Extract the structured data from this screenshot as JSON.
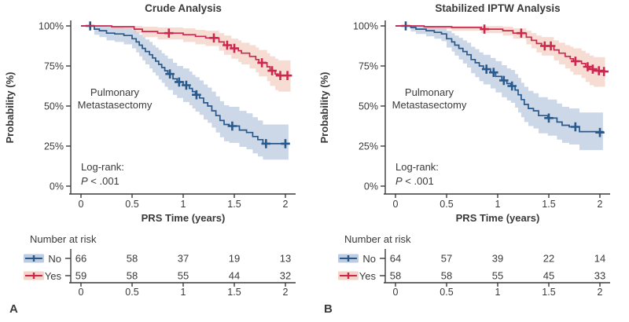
{
  "colors": {
    "axis": "#3a3a3a",
    "text": "#3a3a3a",
    "background": "#ffffff",
    "no_line": "#27598c",
    "no_band": "#a3b7d6",
    "yes_line": "#cd2750",
    "yes_band": "#efbfae"
  },
  "chart_data": [
    {
      "type": "line",
      "subtype": "kaplan-meier-step",
      "title": "Crude Analysis",
      "panel_letter": "A",
      "xlabel": "PRS Time (years)",
      "ylabel": "Probability (%)",
      "annotation_line1": "Pulmonary",
      "annotation_line2": "Metastasectomy",
      "logrank_label": "Log-rank:",
      "p_label": "P",
      "p_rest": " < .001",
      "xlim": [
        0,
        2.05
      ],
      "ylim": [
        0,
        100
      ],
      "xticks": [
        0,
        0.5,
        1,
        1.5,
        2
      ],
      "xtick_labels": [
        "0",
        "0.5",
        "1",
        "1.5",
        "2"
      ],
      "yticks": [
        0,
        25,
        50,
        75,
        100
      ],
      "ytick_labels": [
        "0%",
        "25%",
        "50%",
        "75%",
        "100%"
      ],
      "risk_table": {
        "header": "Number at risk",
        "time_labels": [
          "0",
          "0.5",
          "1",
          "1.5",
          "2"
        ],
        "rows": [
          {
            "label": "No",
            "counts": [
              "66",
              "58",
              "37",
              "19",
              "13"
            ]
          },
          {
            "label": "Yes",
            "counts": [
              "59",
              "58",
              "55",
              "44",
              "32"
            ]
          }
        ]
      },
      "series": [
        {
          "name": "No",
          "line_color": "#27598c",
          "band_color": "#a3b7d6",
          "points": [
            [
              0,
              100,
              100,
              100
            ],
            [
              0.13,
              98,
              94.5,
              100
            ],
            [
              0.18,
              97,
              93,
              100
            ],
            [
              0.25,
              95.5,
              91,
              99.5
            ],
            [
              0.33,
              95,
              90,
              99
            ],
            [
              0.42,
              94,
              88.5,
              98.5
            ],
            [
              0.5,
              92,
              86,
              97.5
            ],
            [
              0.54,
              90,
              83.5,
              96
            ],
            [
              0.57,
              88,
              81,
              94.5
            ],
            [
              0.6,
              86,
              78.5,
              93
            ],
            [
              0.63,
              84,
              76,
              91.5
            ],
            [
              0.67,
              82,
              73.5,
              90
            ],
            [
              0.7,
              80,
              71,
              88
            ],
            [
              0.73,
              78,
              69,
              86.5
            ],
            [
              0.76,
              76,
              66.5,
              85
            ],
            [
              0.79,
              74,
              64.5,
              83
            ],
            [
              0.82,
              72,
              62,
              81.5
            ],
            [
              0.85,
              70,
              60,
              79.5
            ],
            [
              0.9,
              67,
              57,
              77
            ],
            [
              0.94,
              65,
              55,
              75
            ],
            [
              1.0,
              63,
              52.5,
              73.5
            ],
            [
              1.06,
              61,
              50.5,
              71.5
            ],
            [
              1.09,
              59,
              48.5,
              69.5
            ],
            [
              1.12,
              57,
              46.5,
              68
            ],
            [
              1.16,
              55,
              44.5,
              66
            ],
            [
              1.2,
              52,
              41.5,
              63.5
            ],
            [
              1.24,
              50,
              39.5,
              61.5
            ],
            [
              1.28,
              47,
              36.5,
              59
            ],
            [
              1.32,
              44,
              33.5,
              56
            ],
            [
              1.36,
              41,
              30.5,
              53
            ],
            [
              1.4,
              38.5,
              28,
              50.5
            ],
            [
              1.45,
              37.5,
              27,
              49.5
            ],
            [
              1.55,
              35,
              24.5,
              47
            ],
            [
              1.62,
              33.5,
              23,
              45.5
            ],
            [
              1.68,
              31,
              20.5,
              43
            ],
            [
              1.73,
              29,
              18.5,
              41
            ],
            [
              1.78,
              26.5,
              16.5,
              38.5
            ],
            [
              2.03,
              26.5,
              16.5,
              38.5
            ]
          ],
          "censors": [
            [
              0.09,
              100
            ],
            [
              0.87,
              70
            ],
            [
              0.96,
              65
            ],
            [
              1.03,
              63
            ],
            [
              1.13,
              57
            ],
            [
              1.48,
              37.5
            ],
            [
              1.81,
              26.5
            ],
            [
              2.0,
              26.5
            ]
          ]
        },
        {
          "name": "Yes",
          "line_color": "#cd2750",
          "band_color": "#efbfae",
          "points": [
            [
              0,
              100,
              100,
              100
            ],
            [
              0.3,
              99.5,
              98,
              100
            ],
            [
              0.52,
              98,
              95.5,
              100
            ],
            [
              0.6,
              96.5,
              93,
              99.5
            ],
            [
              0.75,
              95.5,
              91.5,
              99
            ],
            [
              1.0,
              94.5,
              90,
              98.5
            ],
            [
              1.12,
              93.5,
              88.5,
              97.5
            ],
            [
              1.22,
              92.5,
              87.5,
              97
            ],
            [
              1.35,
              90,
              84.5,
              95.5
            ],
            [
              1.4,
              88,
              82,
              94
            ],
            [
              1.47,
              86,
              79.5,
              92
            ],
            [
              1.54,
              84.5,
              77.5,
              91
            ],
            [
              1.57,
              83,
              76,
              89.5
            ],
            [
              1.65,
              81,
              73.5,
              88
            ],
            [
              1.71,
              79,
              71,
              86.5
            ],
            [
              1.74,
              77,
              68.5,
              85
            ],
            [
              1.82,
              74.5,
              65.5,
              83
            ],
            [
              1.85,
              72,
              62.5,
              81
            ],
            [
              1.9,
              70,
              60,
              79.5
            ],
            [
              1.93,
              69,
              59,
              78.5
            ],
            [
              2.05,
              69,
              59,
              78.5
            ]
          ],
          "censors": [
            [
              0.86,
              95.5
            ],
            [
              1.3,
              92.5
            ],
            [
              1.43,
              88
            ],
            [
              1.5,
              86
            ],
            [
              1.77,
              77
            ],
            [
              1.87,
              72
            ],
            [
              1.95,
              69
            ],
            [
              2.02,
              69
            ]
          ]
        }
      ]
    },
    {
      "type": "line",
      "subtype": "kaplan-meier-step",
      "title": "Stabilized IPTW Analysis",
      "panel_letter": "B",
      "xlabel": "PRS Time (years)",
      "ylabel": "Probability (%)",
      "annotation_line1": "Pulmonary",
      "annotation_line2": "Metastasectomy",
      "logrank_label": "Log-rank:",
      "p_label": "P",
      "p_rest": " < .001",
      "xlim": [
        0,
        2.05
      ],
      "ylim": [
        0,
        100
      ],
      "xticks": [
        0,
        0.5,
        1,
        1.5,
        2
      ],
      "xtick_labels": [
        "0",
        "0.5",
        "1",
        "1.5",
        "2"
      ],
      "yticks": [
        0,
        25,
        50,
        75,
        100
      ],
      "ytick_labels": [
        "0%",
        "25%",
        "50%",
        "75%",
        "100%"
      ],
      "risk_table": {
        "header": "Number at risk",
        "time_labels": [
          "0",
          "0.5",
          "1",
          "1.5",
          "2"
        ],
        "rows": [
          {
            "label": "No",
            "counts": [
              "64",
              "57",
              "39",
              "22",
              "14"
            ]
          },
          {
            "label": "Yes",
            "counts": [
              "58",
              "58",
              "55",
              "45",
              "33"
            ]
          }
        ]
      },
      "series": [
        {
          "name": "No",
          "line_color": "#27598c",
          "band_color": "#a3b7d6",
          "points": [
            [
              0,
              100,
              100,
              100
            ],
            [
              0.15,
              99,
              96.5,
              100
            ],
            [
              0.2,
              98,
              95,
              100
            ],
            [
              0.3,
              97,
              93.5,
              100
            ],
            [
              0.38,
              96,
              92,
              99.5
            ],
            [
              0.45,
              95,
              90.5,
              99
            ],
            [
              0.5,
              92,
              86.5,
              97
            ],
            [
              0.55,
              90,
              84,
              95.5
            ],
            [
              0.58,
              88,
              81.5,
              94
            ],
            [
              0.62,
              86,
              79,
              92.5
            ],
            [
              0.66,
              84,
              76.5,
              91
            ],
            [
              0.7,
              82,
              74,
              89.5
            ],
            [
              0.74,
              79,
              70.5,
              87
            ],
            [
              0.78,
              77,
              68,
              85.5
            ],
            [
              0.82,
              75,
              65.5,
              83.5
            ],
            [
              0.86,
              73,
              63.5,
              82
            ],
            [
              0.93,
              71,
              61,
              80
            ],
            [
              0.98,
              68.5,
              58.5,
              78
            ],
            [
              1.04,
              66,
              55.5,
              75.5
            ],
            [
              1.09,
              64,
              53.5,
              73.5
            ],
            [
              1.13,
              62.5,
              52,
              72.5
            ],
            [
              1.17,
              60,
              49,
              70
            ],
            [
              1.2,
              57,
              46,
              67.5
            ],
            [
              1.23,
              54,
              43,
              64.5
            ],
            [
              1.26,
              51,
              40,
              62
            ],
            [
              1.3,
              48.5,
              37.5,
              59.5
            ],
            [
              1.35,
              47,
              36,
              58
            ],
            [
              1.4,
              44,
              33,
              55.5
            ],
            [
              1.49,
              42.5,
              31.5,
              54
            ],
            [
              1.58,
              40,
              29,
              51.5
            ],
            [
              1.63,
              38,
              27,
              49.5
            ],
            [
              1.7,
              37,
              26,
              48.5
            ],
            [
              1.8,
              34,
              22.5,
              46
            ],
            [
              2.03,
              33.5,
              22,
              45.5
            ]
          ],
          "censors": [
            [
              0.1,
              100
            ],
            [
              0.89,
              73
            ],
            [
              0.96,
              71
            ],
            [
              1.06,
              66
            ],
            [
              1.14,
              62.5
            ],
            [
              1.5,
              42.5
            ],
            [
              1.76,
              37
            ],
            [
              2.0,
              33.5
            ]
          ]
        },
        {
          "name": "Yes",
          "line_color": "#cd2750",
          "band_color": "#efbfae",
          "points": [
            [
              0,
              100,
              100,
              100
            ],
            [
              0.28,
              99.5,
              98,
              100
            ],
            [
              0.55,
              99,
              97,
              100
            ],
            [
              0.84,
              98,
              95.5,
              100
            ],
            [
              1.05,
              97,
              94,
              99.5
            ],
            [
              1.15,
              95.5,
              92,
              98.5
            ],
            [
              1.28,
              93,
              88.5,
              97
            ],
            [
              1.33,
              91,
              86,
              95.5
            ],
            [
              1.38,
              89,
              83.5,
              94
            ],
            [
              1.43,
              87.5,
              81.5,
              93
            ],
            [
              1.55,
              85,
              78.5,
              91
            ],
            [
              1.6,
              83,
              76,
              89.5
            ],
            [
              1.66,
              81,
              73.5,
              88
            ],
            [
              1.71,
              79.5,
              71.5,
              87
            ],
            [
              1.74,
              78,
              69.5,
              86
            ],
            [
              1.82,
              76.5,
              67.5,
              84.5
            ],
            [
              1.86,
              74.5,
              65,
              83
            ],
            [
              1.9,
              73,
              63,
              81.5
            ],
            [
              1.94,
              72,
              62,
              80.5
            ],
            [
              2.05,
              71.5,
              61,
              80
            ]
          ],
          "censors": [
            [
              0.87,
              98
            ],
            [
              1.23,
              95.5
            ],
            [
              1.46,
              87.5
            ],
            [
              1.52,
              87.5
            ],
            [
              1.76,
              78
            ],
            [
              1.88,
              74.5
            ],
            [
              1.93,
              73
            ],
            [
              1.99,
              72
            ],
            [
              2.04,
              71.5
            ]
          ]
        }
      ]
    }
  ]
}
